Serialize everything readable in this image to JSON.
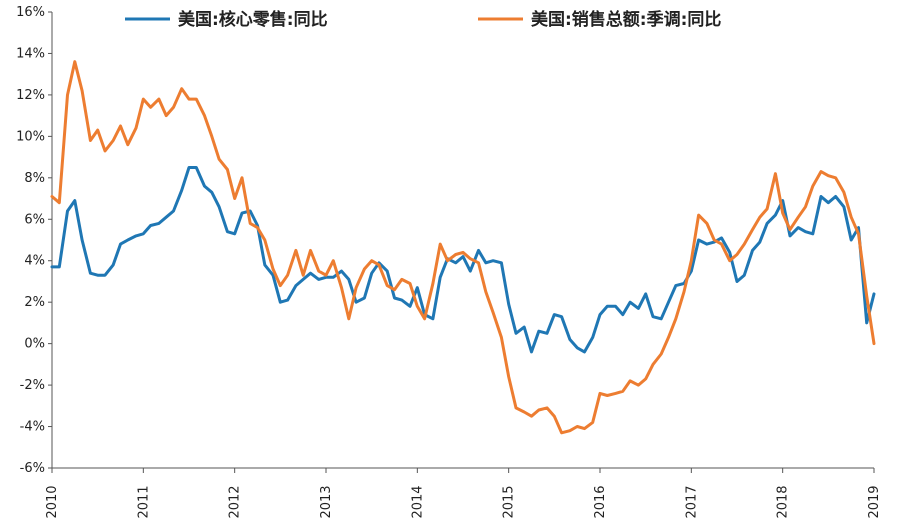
{
  "chart_data": {
    "type": "line",
    "title": "",
    "xlabel": "",
    "ylabel": "",
    "xlim": [
      2010.0,
      2019.0
    ],
    "ylim": [
      -6,
      16
    ],
    "yticks": [
      "-6%",
      "-4%",
      "-2%",
      "0%",
      "2%",
      "4%",
      "6%",
      "8%",
      "10%",
      "12%",
      "14%",
      "16%"
    ],
    "xticks": [
      "2010",
      "2011",
      "2012",
      "2013",
      "2014",
      "2015",
      "2016",
      "2017",
      "2018",
      "2019"
    ],
    "grid": false,
    "legend_position": "top",
    "series": [
      {
        "name": "美国:核心零售:同比",
        "color": "#1f77b4",
        "points": [
          [
            2010.0,
            3.7
          ],
          [
            2010.08,
            3.7
          ],
          [
            2010.17,
            6.4
          ],
          [
            2010.25,
            6.9
          ],
          [
            2010.33,
            5.0
          ],
          [
            2010.42,
            3.4
          ],
          [
            2010.5,
            3.3
          ],
          [
            2010.58,
            3.3
          ],
          [
            2010.67,
            3.8
          ],
          [
            2010.75,
            4.8
          ],
          [
            2010.83,
            5.0
          ],
          [
            2010.92,
            5.2
          ],
          [
            2011.0,
            5.3
          ],
          [
            2011.08,
            5.7
          ],
          [
            2011.17,
            5.8
          ],
          [
            2011.25,
            6.1
          ],
          [
            2011.33,
            6.4
          ],
          [
            2011.42,
            7.4
          ],
          [
            2011.5,
            8.5
          ],
          [
            2011.58,
            8.5
          ],
          [
            2011.67,
            7.6
          ],
          [
            2011.75,
            7.3
          ],
          [
            2011.83,
            6.6
          ],
          [
            2011.92,
            5.4
          ],
          [
            2012.0,
            5.3
          ],
          [
            2012.08,
            6.3
          ],
          [
            2012.17,
            6.4
          ],
          [
            2012.25,
            5.7
          ],
          [
            2012.33,
            3.8
          ],
          [
            2012.42,
            3.3
          ],
          [
            2012.5,
            2.0
          ],
          [
            2012.58,
            2.1
          ],
          [
            2012.67,
            2.8
          ],
          [
            2012.75,
            3.1
          ],
          [
            2012.83,
            3.4
          ],
          [
            2012.92,
            3.1
          ],
          [
            2013.0,
            3.2
          ],
          [
            2013.08,
            3.2
          ],
          [
            2013.17,
            3.5
          ],
          [
            2013.25,
            3.1
          ],
          [
            2013.33,
            2.0
          ],
          [
            2013.42,
            2.2
          ],
          [
            2013.5,
            3.4
          ],
          [
            2013.58,
            3.9
          ],
          [
            2013.67,
            3.5
          ],
          [
            2013.75,
            2.2
          ],
          [
            2013.83,
            2.1
          ],
          [
            2013.92,
            1.8
          ],
          [
            2014.0,
            2.7
          ],
          [
            2014.08,
            1.4
          ],
          [
            2014.17,
            1.2
          ],
          [
            2014.25,
            3.2
          ],
          [
            2014.33,
            4.1
          ],
          [
            2014.42,
            3.9
          ],
          [
            2014.5,
            4.2
          ],
          [
            2014.58,
            3.5
          ],
          [
            2014.67,
            4.5
          ],
          [
            2014.75,
            3.9
          ],
          [
            2014.83,
            4.0
          ],
          [
            2014.92,
            3.9
          ],
          [
            2015.0,
            1.9
          ],
          [
            2015.08,
            0.5
          ],
          [
            2015.17,
            0.8
          ],
          [
            2015.25,
            -0.4
          ],
          [
            2015.33,
            0.6
          ],
          [
            2015.42,
            0.5
          ],
          [
            2015.5,
            1.4
          ],
          [
            2015.58,
            1.3
          ],
          [
            2015.67,
            0.2
          ],
          [
            2015.75,
            -0.2
          ],
          [
            2015.83,
            -0.4
          ],
          [
            2015.92,
            0.3
          ],
          [
            2016.0,
            1.4
          ],
          [
            2016.08,
            1.8
          ],
          [
            2016.17,
            1.8
          ],
          [
            2016.25,
            1.4
          ],
          [
            2016.33,
            2.0
          ],
          [
            2016.42,
            1.7
          ],
          [
            2016.5,
            2.4
          ],
          [
            2016.58,
            1.3
          ],
          [
            2016.67,
            1.2
          ],
          [
            2016.75,
            2.0
          ],
          [
            2016.83,
            2.8
          ],
          [
            2016.92,
            2.9
          ],
          [
            2017.0,
            3.5
          ],
          [
            2017.08,
            5.0
          ],
          [
            2017.17,
            4.8
          ],
          [
            2017.25,
            4.9
          ],
          [
            2017.33,
            5.1
          ],
          [
            2017.42,
            4.4
          ],
          [
            2017.5,
            3.0
          ],
          [
            2017.58,
            3.3
          ],
          [
            2017.67,
            4.5
          ],
          [
            2017.75,
            4.9
          ],
          [
            2017.83,
            5.8
          ],
          [
            2017.92,
            6.2
          ],
          [
            2018.0,
            6.9
          ],
          [
            2018.08,
            5.2
          ],
          [
            2018.17,
            5.6
          ],
          [
            2018.25,
            5.4
          ],
          [
            2018.33,
            5.3
          ],
          [
            2018.42,
            7.1
          ],
          [
            2018.5,
            6.8
          ],
          [
            2018.58,
            7.1
          ],
          [
            2018.67,
            6.6
          ],
          [
            2018.75,
            5.0
          ],
          [
            2018.83,
            5.6
          ],
          [
            2018.92,
            1.0
          ],
          [
            2019.0,
            2.4
          ]
        ]
      },
      {
        "name": "美国:销售总额:季调:同比",
        "color": "#ed7d31",
        "points": [
          [
            2010.0,
            7.1
          ],
          [
            2010.08,
            6.8
          ],
          [
            2010.17,
            12.0
          ],
          [
            2010.25,
            13.6
          ],
          [
            2010.33,
            12.2
          ],
          [
            2010.42,
            9.8
          ],
          [
            2010.5,
            10.3
          ],
          [
            2010.58,
            9.3
          ],
          [
            2010.67,
            9.8
          ],
          [
            2010.75,
            10.5
          ],
          [
            2010.83,
            9.6
          ],
          [
            2010.92,
            10.4
          ],
          [
            2011.0,
            11.8
          ],
          [
            2011.08,
            11.4
          ],
          [
            2011.17,
            11.8
          ],
          [
            2011.25,
            11.0
          ],
          [
            2011.33,
            11.4
          ],
          [
            2011.42,
            12.3
          ],
          [
            2011.5,
            11.8
          ],
          [
            2011.58,
            11.8
          ],
          [
            2011.67,
            11.0
          ],
          [
            2011.75,
            10.0
          ],
          [
            2011.83,
            8.9
          ],
          [
            2011.92,
            8.4
          ],
          [
            2012.0,
            7.0
          ],
          [
            2012.08,
            8.0
          ],
          [
            2012.17,
            5.8
          ],
          [
            2012.25,
            5.6
          ],
          [
            2012.33,
            5.0
          ],
          [
            2012.42,
            3.6
          ],
          [
            2012.5,
            2.8
          ],
          [
            2012.58,
            3.3
          ],
          [
            2012.67,
            4.5
          ],
          [
            2012.75,
            3.3
          ],
          [
            2012.83,
            4.5
          ],
          [
            2012.92,
            3.5
          ],
          [
            2013.0,
            3.3
          ],
          [
            2013.08,
            4.0
          ],
          [
            2013.17,
            2.7
          ],
          [
            2013.25,
            1.2
          ],
          [
            2013.33,
            2.7
          ],
          [
            2013.42,
            3.6
          ],
          [
            2013.5,
            4.0
          ],
          [
            2013.58,
            3.8
          ],
          [
            2013.67,
            2.8
          ],
          [
            2013.75,
            2.6
          ],
          [
            2013.83,
            3.1
          ],
          [
            2013.92,
            2.9
          ],
          [
            2014.0,
            1.8
          ],
          [
            2014.08,
            1.2
          ],
          [
            2014.17,
            2.9
          ],
          [
            2014.25,
            4.8
          ],
          [
            2014.33,
            4.0
          ],
          [
            2014.42,
            4.3
          ],
          [
            2014.5,
            4.4
          ],
          [
            2014.58,
            4.1
          ],
          [
            2014.67,
            3.9
          ],
          [
            2014.75,
            2.5
          ],
          [
            2014.83,
            1.5
          ],
          [
            2014.92,
            0.3
          ],
          [
            2015.0,
            -1.6
          ],
          [
            2015.08,
            -3.1
          ],
          [
            2015.17,
            -3.3
          ],
          [
            2015.25,
            -3.5
          ],
          [
            2015.33,
            -3.2
          ],
          [
            2015.42,
            -3.1
          ],
          [
            2015.5,
            -3.5
          ],
          [
            2015.58,
            -4.3
          ],
          [
            2015.67,
            -4.2
          ],
          [
            2015.75,
            -4.0
          ],
          [
            2015.83,
            -4.1
          ],
          [
            2015.92,
            -3.8
          ],
          [
            2016.0,
            -2.4
          ],
          [
            2016.08,
            -2.5
          ],
          [
            2016.17,
            -2.4
          ],
          [
            2016.25,
            -2.3
          ],
          [
            2016.33,
            -1.8
          ],
          [
            2016.42,
            -2.0
          ],
          [
            2016.5,
            -1.7
          ],
          [
            2016.58,
            -1.0
          ],
          [
            2016.67,
            -0.5
          ],
          [
            2016.75,
            0.3
          ],
          [
            2016.83,
            1.2
          ],
          [
            2016.92,
            2.5
          ],
          [
            2017.0,
            4.0
          ],
          [
            2017.08,
            6.2
          ],
          [
            2017.17,
            5.8
          ],
          [
            2017.25,
            5.0
          ],
          [
            2017.33,
            4.8
          ],
          [
            2017.42,
            4.0
          ],
          [
            2017.5,
            4.3
          ],
          [
            2017.58,
            4.8
          ],
          [
            2017.67,
            5.5
          ],
          [
            2017.75,
            6.1
          ],
          [
            2017.83,
            6.5
          ],
          [
            2017.92,
            8.2
          ],
          [
            2018.0,
            6.3
          ],
          [
            2018.08,
            5.5
          ],
          [
            2018.17,
            6.1
          ],
          [
            2018.25,
            6.6
          ],
          [
            2018.33,
            7.6
          ],
          [
            2018.42,
            8.3
          ],
          [
            2018.5,
            8.1
          ],
          [
            2018.58,
            8.0
          ],
          [
            2018.67,
            7.3
          ],
          [
            2018.75,
            6.1
          ],
          [
            2018.83,
            5.3
          ],
          [
            2018.92,
            2.3
          ],
          [
            2019.0,
            0.0
          ]
        ]
      }
    ]
  }
}
